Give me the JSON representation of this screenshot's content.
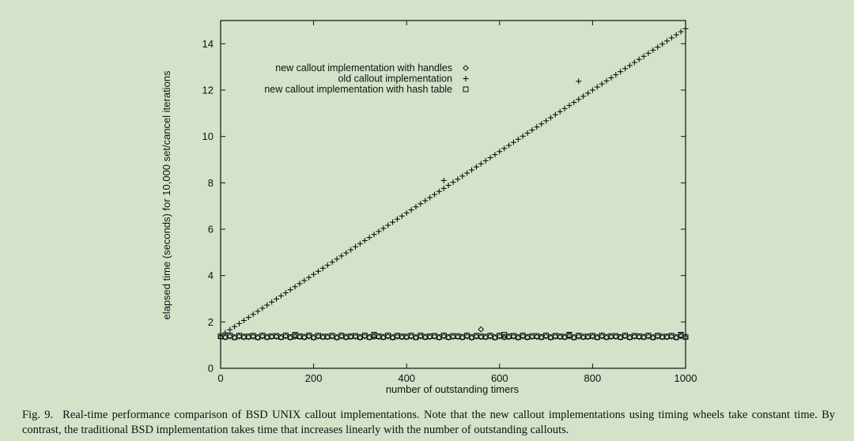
{
  "chart_data": {
    "type": "scatter",
    "title": "",
    "xlabel": "number of outstanding timers",
    "ylabel": "elapsed time (seconds) for 10,000 set/cancel iterations",
    "xlim": [
      0,
      1000
    ],
    "ylim": [
      0,
      15
    ],
    "xticks": [
      0,
      200,
      400,
      600,
      800,
      1000
    ],
    "yticks": [
      0,
      2,
      4,
      6,
      8,
      10,
      12,
      14
    ],
    "grid": false,
    "legend": "top-left",
    "series": [
      {
        "name": "new callout implementation with handles",
        "marker": "diamond",
        "model": {
          "x_start": 0,
          "x_end": 1000,
          "x_step": 10,
          "y_const": 1.35,
          "jitter": 0.03,
          "outliers": [
            {
              "x": 560,
              "y": 1.68
            }
          ]
        }
      },
      {
        "name": "old callout implementation",
        "marker": "plus",
        "model": {
          "x_start": 0,
          "x_end": 1000,
          "x_step": 10,
          "y_at_x0": 1.4,
          "slope": 0.01325,
          "outliers": [
            {
              "x": 480,
              "y": 8.1
            },
            {
              "x": 770,
              "y": 12.38
            }
          ]
        }
      },
      {
        "name": "new callout implementation with hash table",
        "marker": "square",
        "model": {
          "x_start": 0,
          "x_end": 1000,
          "x_step": 10,
          "y_const": 1.38,
          "jitter": 0.04,
          "outliers": [
            {
              "x": 160,
              "y": 1.45
            },
            {
              "x": 330,
              "y": 1.45
            },
            {
              "x": 610,
              "y": 1.45
            },
            {
              "x": 750,
              "y": 1.45
            },
            {
              "x": 990,
              "y": 1.45
            }
          ]
        }
      }
    ]
  },
  "caption": {
    "label": "Fig. 9.",
    "text": "Real-time performance comparison of BSD UNIX callout implementations. Note that the new callout implementations using timing wheels take constant time. By contrast, the traditional BSD implementation takes time that increases linearly with the number of outstanding callouts."
  }
}
